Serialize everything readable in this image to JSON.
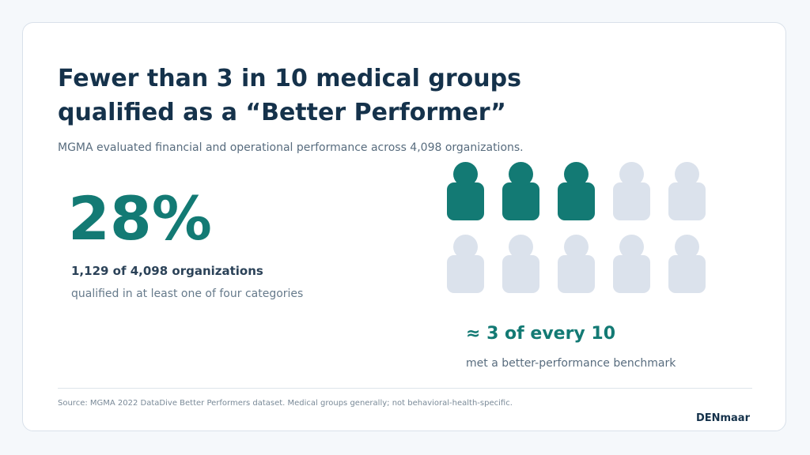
{
  "title_line1": "Fewer than 3 in 10 medical groups",
  "title_line2": "qualified as a “Better Performer”",
  "subtitle": "MGMA evaluated financial and operational performance across 4,098 organizations.",
  "stat": {
    "value": "28%",
    "label": "1,129 of 4,098 organizations",
    "caption": "qualified in at least one of four categories"
  },
  "pictogram": {
    "total": 10,
    "highlighted": 3,
    "highlight_color": "#137a74",
    "muted_color": "#dbe2ec",
    "icon": "person-icon"
  },
  "ratio": {
    "headline": "≈ 3 of every 10",
    "caption": "met a better-performance benchmark"
  },
  "footer": {
    "source": "Source: MGMA 2022 DataDive Better Performers dataset. Medical groups generally; not behavioral-health-specific.",
    "brand": "DENmaar"
  }
}
